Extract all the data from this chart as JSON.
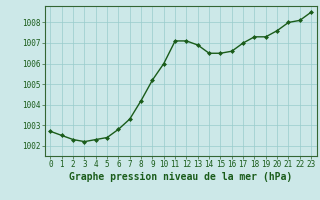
{
  "x": [
    0,
    1,
    2,
    3,
    4,
    5,
    6,
    7,
    8,
    9,
    10,
    11,
    12,
    13,
    14,
    15,
    16,
    17,
    18,
    19,
    20,
    21,
    22,
    23
  ],
  "y": [
    1002.7,
    1002.5,
    1002.3,
    1002.2,
    1002.3,
    1002.4,
    1002.8,
    1003.3,
    1004.2,
    1005.2,
    1006.0,
    1007.1,
    1007.1,
    1006.9,
    1006.5,
    1006.5,
    1006.6,
    1007.0,
    1007.3,
    1007.3,
    1007.6,
    1008.0,
    1008.1,
    1008.5
  ],
  "line_color": "#1a5c1a",
  "marker": "D",
  "marker_size": 2.0,
  "background_color": "#cce8e8",
  "grid_color": "#99cccc",
  "xlabel": "Graphe pression niveau de la mer (hPa)",
  "xlabel_color": "#1a5c1a",
  "ylim": [
    1001.5,
    1008.8
  ],
  "xlim": [
    -0.5,
    23.5
  ],
  "yticks": [
    1002,
    1003,
    1004,
    1005,
    1006,
    1007,
    1008
  ],
  "xticks": [
    0,
    1,
    2,
    3,
    4,
    5,
    6,
    7,
    8,
    9,
    10,
    11,
    12,
    13,
    14,
    15,
    16,
    17,
    18,
    19,
    20,
    21,
    22,
    23
  ],
  "tick_color": "#1a5c1a",
  "tick_fontsize": 5.5,
  "xlabel_fontsize": 7.0,
  "spine_color": "#336633",
  "linewidth": 1.0
}
